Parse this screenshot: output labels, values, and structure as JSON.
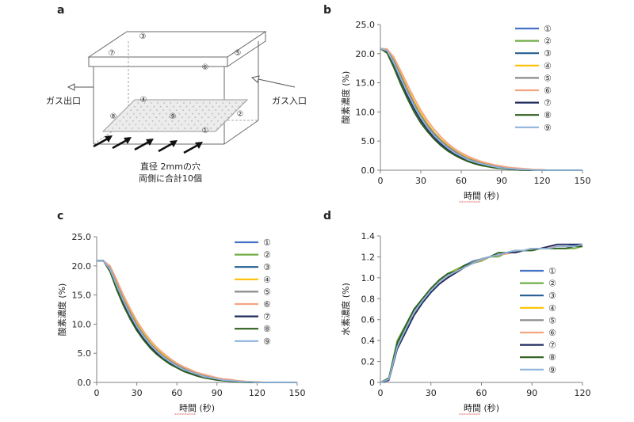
{
  "panel_letters": {
    "a": "a",
    "b": "b",
    "c": "c",
    "d": "d"
  },
  "diagram": {
    "label_outlet": "ガス出口",
    "label_inlet": "ガス入口",
    "caption_line1": "直径 2mmの穴",
    "caption_line2": "両側に合計10個",
    "points": [
      "①",
      "②",
      "③",
      "④",
      "⑤",
      "⑥",
      "⑦",
      "⑧",
      "⑨"
    ]
  },
  "chart_data": [
    {
      "id": "b",
      "type": "line",
      "ylabel": "酸素濃度 (%)",
      "xlabel": "時間 (秒)",
      "xlim": [
        0,
        150
      ],
      "ylim": [
        0,
        25
      ],
      "xticks": [
        0,
        30,
        60,
        90,
        120,
        150
      ],
      "yticks": [
        "0.0",
        "5.0",
        "10.0",
        "15.0",
        "20.0",
        "25.0"
      ],
      "yticks_values": [
        0,
        5,
        10,
        15,
        20,
        25
      ],
      "legend": [
        "①",
        "②",
        "③",
        "④",
        "⑤",
        "⑥",
        "⑦",
        "⑧",
        "⑨"
      ],
      "colors": [
        "#4472C4",
        "#70AD47",
        "#255E91",
        "#FFC000",
        "#8C8C8C",
        "#F4A582",
        "#1F2A5E",
        "#2F5F1E",
        "#8FB4DE"
      ],
      "x": [
        0,
        5,
        10,
        15,
        20,
        25,
        30,
        35,
        40,
        45,
        50,
        55,
        60,
        65,
        70,
        75,
        80,
        85,
        90,
        95,
        100,
        105,
        110,
        115,
        120,
        125,
        130,
        135,
        140,
        145,
        150
      ],
      "series": [
        {
          "name": "①",
          "values": [
            20.9,
            20.6,
            18.6,
            16.0,
            13.4,
            11.0,
            9.0,
            7.3,
            5.9,
            4.7,
            3.8,
            3.0,
            2.3,
            1.8,
            1.4,
            1.1,
            0.8,
            0.6,
            0.4,
            0.3,
            0.2,
            0.1,
            0.1,
            0.0,
            0.0,
            0.0,
            0.0,
            0.0,
            0.0,
            0.0,
            0.0
          ]
        },
        {
          "name": "②",
          "values": [
            20.9,
            20.2,
            17.8,
            15.0,
            12.5,
            10.2,
            8.3,
            6.7,
            5.4,
            4.3,
            3.4,
            2.7,
            2.1,
            1.6,
            1.2,
            0.9,
            0.7,
            0.5,
            0.3,
            0.2,
            0.1,
            0.1,
            0.0,
            0.0,
            0.0,
            0.0,
            0.0,
            0.0,
            0.0,
            0.0,
            0.0
          ]
        },
        {
          "name": "③",
          "values": [
            20.9,
            20.6,
            18.7,
            16.1,
            13.6,
            11.2,
            9.2,
            7.5,
            6.1,
            4.9,
            3.9,
            3.1,
            2.4,
            1.9,
            1.5,
            1.1,
            0.8,
            0.6,
            0.4,
            0.3,
            0.2,
            0.1,
            0.1,
            0.0,
            0.0,
            0.0,
            0.0,
            0.0,
            0.0,
            0.0,
            0.0
          ]
        },
        {
          "name": "④",
          "values": [
            20.9,
            20.7,
            19.0,
            16.6,
            14.1,
            11.8,
            9.8,
            8.0,
            6.5,
            5.3,
            4.3,
            3.4,
            2.7,
            2.1,
            1.7,
            1.3,
            1.0,
            0.7,
            0.5,
            0.4,
            0.3,
            0.2,
            0.1,
            0.1,
            0.0,
            0.0,
            0.0,
            0.0,
            0.0,
            0.0,
            0.0
          ]
        },
        {
          "name": "⑤",
          "values": [
            20.9,
            20.6,
            18.8,
            16.3,
            13.8,
            11.5,
            9.4,
            7.7,
            6.3,
            5.1,
            4.1,
            3.3,
            2.6,
            2.0,
            1.6,
            1.2,
            0.9,
            0.7,
            0.5,
            0.3,
            0.2,
            0.1,
            0.1,
            0.0,
            0.0,
            0.0,
            0.0,
            0.0,
            0.0,
            0.0,
            0.0
          ]
        },
        {
          "name": "⑥",
          "values": [
            20.9,
            20.8,
            19.4,
            17.1,
            14.7,
            12.4,
            10.3,
            8.5,
            7.0,
            5.7,
            4.6,
            3.7,
            3.0,
            2.4,
            1.9,
            1.5,
            1.2,
            0.9,
            0.7,
            0.5,
            0.4,
            0.3,
            0.2,
            0.1,
            0.1,
            0.0,
            0.0,
            0.0,
            0.0,
            0.0,
            0.0
          ]
        },
        {
          "name": "⑦",
          "values": [
            20.9,
            20.4,
            18.2,
            15.5,
            12.9,
            10.6,
            8.6,
            7.0,
            5.6,
            4.5,
            3.6,
            2.8,
            2.2,
            1.7,
            1.3,
            1.0,
            0.7,
            0.5,
            0.4,
            0.2,
            0.1,
            0.0,
            0.0,
            0.0,
            0.0,
            0.0,
            0.0,
            0.0,
            0.0,
            0.0,
            0.0
          ]
        },
        {
          "name": "⑧",
          "values": [
            20.9,
            20.1,
            17.6,
            14.8,
            12.3,
            10.0,
            8.1,
            6.6,
            5.3,
            4.2,
            3.3,
            2.6,
            2.0,
            1.5,
            1.1,
            0.8,
            0.6,
            0.4,
            0.3,
            0.2,
            0.1,
            0.0,
            0.0,
            0.0,
            0.0,
            0.0,
            0.0,
            0.0,
            0.0,
            0.0,
            0.0
          ]
        },
        {
          "name": "⑨",
          "values": [
            20.9,
            20.5,
            18.4,
            15.8,
            13.3,
            11.0,
            9.0,
            7.3,
            5.9,
            4.8,
            3.8,
            3.0,
            2.4,
            1.8,
            1.4,
            1.1,
            0.8,
            0.6,
            0.4,
            0.3,
            0.2,
            0.1,
            0.1,
            0.0,
            0.0,
            0.0,
            0.0,
            0.0,
            0.0,
            0.0,
            0.0
          ]
        }
      ]
    },
    {
      "id": "c",
      "type": "line",
      "ylabel": "酸素濃度 (%)",
      "xlabel": "時間 (秒)",
      "xlim": [
        0,
        150
      ],
      "ylim": [
        0,
        25
      ],
      "xticks": [
        0,
        30,
        60,
        90,
        120,
        150
      ],
      "yticks": [
        "0.0",
        "5.0",
        "10.0",
        "15.0",
        "20.0",
        "25.0"
      ],
      "yticks_values": [
        0,
        5,
        10,
        15,
        20,
        25
      ],
      "legend": [
        "①",
        "②",
        "③",
        "④",
        "⑤",
        "⑥",
        "⑦",
        "⑧",
        "⑨"
      ],
      "colors": [
        "#4472C4",
        "#70AD47",
        "#255E91",
        "#FFC000",
        "#8C8C8C",
        "#F4A582",
        "#1F2A5E",
        "#2F5F1E",
        "#8FB4DE"
      ],
      "x": [
        0,
        5,
        10,
        15,
        20,
        25,
        30,
        35,
        40,
        45,
        50,
        55,
        60,
        65,
        70,
        75,
        80,
        85,
        90,
        95,
        100,
        105,
        110,
        115,
        120,
        125,
        130,
        135,
        140,
        145,
        150
      ],
      "series": [
        {
          "name": "①",
          "values": [
            20.9,
            20.9,
            19.6,
            16.8,
            14.2,
            11.8,
            9.8,
            8.0,
            6.6,
            5.4,
            4.4,
            3.6,
            2.9,
            2.3,
            1.8,
            1.4,
            1.1,
            0.8,
            0.6,
            0.4,
            0.3,
            0.2,
            0.1,
            0.1,
            0.0,
            0.0,
            0.0,
            0.0,
            0.0,
            0.0,
            0.0
          ]
        },
        {
          "name": "②",
          "values": [
            20.9,
            20.9,
            19.3,
            16.4,
            13.7,
            11.4,
            9.4,
            7.7,
            6.3,
            5.1,
            4.2,
            3.4,
            2.7,
            2.1,
            1.7,
            1.3,
            1.0,
            0.7,
            0.5,
            0.4,
            0.3,
            0.2,
            0.1,
            0.0,
            0.0,
            0.0,
            0.0,
            0.0,
            0.0,
            0.0,
            0.0
          ]
        },
        {
          "name": "③",
          "values": [
            20.9,
            20.9,
            19.5,
            16.7,
            14.1,
            11.7,
            9.7,
            7.9,
            6.5,
            5.3,
            4.3,
            3.5,
            2.8,
            2.2,
            1.8,
            1.4,
            1.1,
            0.8,
            0.6,
            0.4,
            0.3,
            0.2,
            0.1,
            0.1,
            0.0,
            0.0,
            0.0,
            0.0,
            0.0,
            0.0,
            0.0
          ]
        },
        {
          "name": "④",
          "values": [
            20.9,
            20.9,
            19.8,
            17.2,
            14.6,
            12.2,
            10.2,
            8.4,
            6.9,
            5.7,
            4.7,
            3.8,
            3.1,
            2.5,
            2.0,
            1.6,
            1.2,
            0.9,
            0.7,
            0.5,
            0.4,
            0.3,
            0.2,
            0.1,
            0.1,
            0.0,
            0.0,
            0.0,
            0.0,
            0.0,
            0.0
          ]
        },
        {
          "name": "⑤",
          "values": [
            20.9,
            20.9,
            19.6,
            16.9,
            14.3,
            12.0,
            9.9,
            8.2,
            6.7,
            5.5,
            4.5,
            3.7,
            3.0,
            2.4,
            1.9,
            1.5,
            1.1,
            0.9,
            0.6,
            0.5,
            0.3,
            0.2,
            0.1,
            0.1,
            0.0,
            0.0,
            0.0,
            0.0,
            0.0,
            0.0,
            0.0
          ]
        },
        {
          "name": "⑥",
          "values": [
            20.9,
            20.9,
            20.0,
            17.6,
            15.0,
            12.7,
            10.6,
            8.8,
            7.3,
            6.0,
            5.0,
            4.1,
            3.3,
            2.7,
            2.2,
            1.7,
            1.4,
            1.1,
            0.8,
            0.6,
            0.5,
            0.3,
            0.2,
            0.1,
            0.1,
            0.0,
            0.0,
            0.0,
            0.0,
            0.0,
            0.0
          ]
        },
        {
          "name": "⑦",
          "values": [
            20.9,
            20.9,
            19.2,
            16.2,
            13.5,
            11.2,
            9.2,
            7.5,
            6.1,
            5.0,
            4.0,
            3.2,
            2.6,
            2.0,
            1.6,
            1.2,
            0.9,
            0.7,
            0.5,
            0.3,
            0.2,
            0.1,
            0.1,
            0.0,
            0.0,
            0.0,
            0.0,
            0.0,
            0.0,
            0.0,
            0.0
          ]
        },
        {
          "name": "⑧",
          "values": [
            20.9,
            20.9,
            19.0,
            15.9,
            13.2,
            10.9,
            8.9,
            7.3,
            5.9,
            4.8,
            3.9,
            3.1,
            2.5,
            1.9,
            1.5,
            1.1,
            0.8,
            0.6,
            0.4,
            0.3,
            0.2,
            0.1,
            0.0,
            0.0,
            0.0,
            0.0,
            0.0,
            0.0,
            0.0,
            0.0,
            0.0
          ]
        },
        {
          "name": "⑨",
          "values": [
            20.9,
            20.9,
            19.4,
            16.6,
            14.0,
            11.6,
            9.6,
            7.9,
            6.5,
            5.3,
            4.3,
            3.5,
            2.8,
            2.2,
            1.8,
            1.4,
            1.0,
            0.8,
            0.6,
            0.4,
            0.3,
            0.2,
            0.1,
            0.1,
            0.0,
            0.0,
            0.0,
            0.0,
            0.0,
            0.0,
            0.0
          ]
        }
      ]
    },
    {
      "id": "d",
      "type": "line",
      "ylabel": "水素濃度 (%)",
      "xlabel": "時間 (秒)",
      "xlim": [
        0,
        120
      ],
      "ylim": [
        0,
        1.4
      ],
      "xticks": [
        0,
        30,
        60,
        90,
        120
      ],
      "yticks": [
        "0",
        "0.2",
        "0.4",
        "0.6",
        "0.8",
        "1.0",
        "1.2",
        "1.4"
      ],
      "yticks_values": [
        0,
        0.2,
        0.4,
        0.6,
        0.8,
        1.0,
        1.2,
        1.4
      ],
      "legend": [
        "①",
        "②",
        "③",
        "④",
        "⑤",
        "⑥",
        "⑦",
        "⑧",
        "⑨"
      ],
      "colors": [
        "#4472C4",
        "#70AD47",
        "#255E91",
        "#FFC000",
        "#8C8C8C",
        "#F4A582",
        "#1F2A5E",
        "#2F5F1E",
        "#8FB4DE"
      ],
      "x": [
        0,
        5,
        10,
        15,
        20,
        25,
        30,
        35,
        40,
        45,
        50,
        55,
        60,
        65,
        70,
        75,
        80,
        85,
        90,
        95,
        100,
        105,
        110,
        115,
        120
      ],
      "series": [
        {
          "name": "①",
          "values": [
            0.0,
            0.03,
            0.36,
            0.52,
            0.68,
            0.78,
            0.88,
            0.96,
            1.02,
            1.06,
            1.12,
            1.16,
            1.18,
            1.2,
            1.22,
            1.24,
            1.26,
            1.26,
            1.28,
            1.28,
            1.29,
            1.3,
            1.3,
            1.31,
            1.31
          ]
        },
        {
          "name": "②",
          "values": [
            0.0,
            0.04,
            0.4,
            0.55,
            0.7,
            0.8,
            0.9,
            0.98,
            1.04,
            1.08,
            1.12,
            1.14,
            1.16,
            1.2,
            1.2,
            1.24,
            1.24,
            1.26,
            1.28,
            1.28,
            1.28,
            1.28,
            1.28,
            1.28,
            1.3
          ]
        },
        {
          "name": "③",
          "values": [
            0.0,
            0.03,
            0.34,
            0.5,
            0.66,
            0.77,
            0.87,
            0.95,
            1.02,
            1.06,
            1.11,
            1.15,
            1.18,
            1.2,
            1.22,
            1.24,
            1.25,
            1.26,
            1.27,
            1.28,
            1.29,
            1.3,
            1.3,
            1.3,
            1.31
          ]
        },
        {
          "name": "④",
          "values": [
            0.0,
            0.03,
            0.35,
            0.51,
            0.67,
            0.78,
            0.88,
            0.96,
            1.02,
            1.07,
            1.11,
            1.15,
            1.18,
            1.2,
            1.22,
            1.23,
            1.25,
            1.26,
            1.27,
            1.28,
            1.29,
            1.3,
            1.3,
            1.3,
            1.31
          ]
        },
        {
          "name": "⑤",
          "values": [
            0.0,
            0.03,
            0.35,
            0.51,
            0.67,
            0.78,
            0.88,
            0.96,
            1.02,
            1.06,
            1.11,
            1.15,
            1.18,
            1.2,
            1.22,
            1.23,
            1.25,
            1.26,
            1.27,
            1.28,
            1.29,
            1.3,
            1.3,
            1.3,
            1.31
          ]
        },
        {
          "name": "⑥",
          "values": [
            0.0,
            0.03,
            0.34,
            0.5,
            0.66,
            0.77,
            0.87,
            0.95,
            1.01,
            1.06,
            1.1,
            1.14,
            1.17,
            1.2,
            1.22,
            1.23,
            1.25,
            1.26,
            1.27,
            1.28,
            1.29,
            1.3,
            1.3,
            1.3,
            1.31
          ]
        },
        {
          "name": "⑦",
          "values": [
            0.0,
            0.02,
            0.32,
            0.48,
            0.64,
            0.76,
            0.86,
            0.94,
            1.0,
            1.05,
            1.1,
            1.14,
            1.18,
            1.2,
            1.22,
            1.24,
            1.24,
            1.26,
            1.28,
            1.28,
            1.3,
            1.32,
            1.32,
            1.32,
            1.32
          ]
        },
        {
          "name": "⑧",
          "values": [
            0.0,
            0.04,
            0.38,
            0.54,
            0.7,
            0.8,
            0.9,
            0.98,
            1.04,
            1.06,
            1.12,
            1.14,
            1.18,
            1.2,
            1.24,
            1.24,
            1.26,
            1.26,
            1.26,
            1.28,
            1.28,
            1.28,
            1.28,
            1.3,
            1.3
          ]
        },
        {
          "name": "⑨",
          "values": [
            0.0,
            0.03,
            0.34,
            0.51,
            0.67,
            0.78,
            0.88,
            0.96,
            1.02,
            1.06,
            1.1,
            1.14,
            1.18,
            1.2,
            1.22,
            1.24,
            1.26,
            1.26,
            1.28,
            1.28,
            1.28,
            1.3,
            1.3,
            1.3,
            1.32
          ]
        }
      ]
    }
  ]
}
